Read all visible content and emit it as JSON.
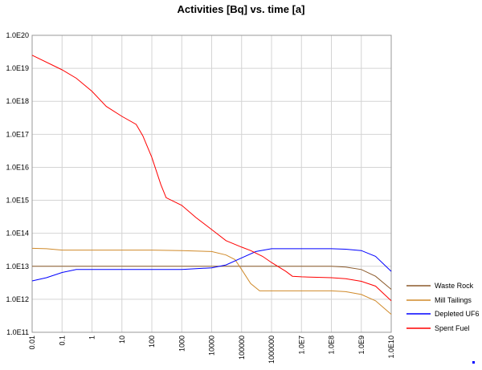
{
  "chart_data": {
    "type": "line",
    "title": "Activities [Bq] vs. time [a]",
    "xlabel": "",
    "ylabel": "",
    "x_scale": "log",
    "y_scale": "log",
    "xlim": [
      0.01,
      10000000000
    ],
    "ylim": [
      100000000000,
      100000000000000000000
    ],
    "grid": true,
    "legend_position": "right",
    "x_ticks": [
      {
        "value": 0.01,
        "label": "0.01"
      },
      {
        "value": 0.1,
        "label": "0.1"
      },
      {
        "value": 1,
        "label": "1"
      },
      {
        "value": 10,
        "label": "10"
      },
      {
        "value": 100,
        "label": "100"
      },
      {
        "value": 1000,
        "label": "1000"
      },
      {
        "value": 10000,
        "label": "10000"
      },
      {
        "value": 100000,
        "label": "100000"
      },
      {
        "value": 1000000,
        "label": "1000000"
      },
      {
        "value": 10000000,
        "label": "1.0E7"
      },
      {
        "value": 100000000,
        "label": "1.0E8"
      },
      {
        "value": 1000000000,
        "label": "1.0E9"
      },
      {
        "value": 10000000000,
        "label": "1.0E10"
      }
    ],
    "y_ticks": [
      {
        "value": 100000000000,
        "label": "1.0E11"
      },
      {
        "value": 1000000000000,
        "label": "1.0E12"
      },
      {
        "value": 10000000000000,
        "label": "1.0E13"
      },
      {
        "value": 100000000000000,
        "label": "1.0E14"
      },
      {
        "value": 1000000000000000,
        "label": "1.0E15"
      },
      {
        "value": 10000000000000000,
        "label": "1.0E16"
      },
      {
        "value": 100000000000000000,
        "label": "1.0E17"
      },
      {
        "value": 1000000000000000000,
        "label": "1.0E18"
      },
      {
        "value": 10000000000000000000,
        "label": "1.0E19"
      },
      {
        "value": 100000000000000000000,
        "label": "1.0E20"
      }
    ],
    "series": [
      {
        "name": "Waste Rock",
        "color": "#8b5a2b",
        "x": [
          0.01,
          0.1,
          1,
          10,
          100,
          1000,
          10000,
          100000,
          1000000,
          10000000,
          100000000,
          300000000,
          1000000000,
          3000000000,
          10000000000
        ],
        "y": [
          10000000000000,
          10000000000000,
          10000000000000,
          10000000000000,
          10000000000000,
          10000000000000,
          10000000000000,
          10000000000000,
          10000000000000,
          10000000000000,
          10000000000000,
          9500000000000,
          8000000000000,
          5000000000000,
          2000000000000
        ]
      },
      {
        "name": "Mill Tailings",
        "color": "#d08a2a",
        "x": [
          0.01,
          0.03,
          0.1,
          1,
          10,
          100,
          1000,
          10000,
          30000,
          60000,
          100000,
          200000,
          400000,
          1000000,
          10000000,
          100000000,
          300000000,
          1000000000,
          3000000000,
          10000000000
        ],
        "y": [
          35000000000000,
          34000000000000,
          31000000000000,
          31000000000000,
          31000000000000,
          31000000000000,
          30000000000000,
          28000000000000,
          22000000000000,
          16000000000000,
          8000000000000,
          3000000000000,
          1800000000000,
          1800000000000,
          1800000000000,
          1800000000000,
          1700000000000,
          1400000000000,
          900000000000,
          350000000000
        ]
      },
      {
        "name": "Depleted UF6",
        "color": "#0000ff",
        "x": [
          0.01,
          0.03,
          0.1,
          0.3,
          1,
          10,
          100,
          1000,
          10000,
          30000,
          100000,
          300000,
          1000000,
          10000000,
          100000000,
          300000000,
          1000000000,
          3000000000,
          10000000000
        ],
        "y": [
          3600000000000,
          4500000000000,
          6500000000000,
          8000000000000,
          8000000000000,
          8000000000000,
          8000000000000,
          8000000000000,
          9000000000000,
          11000000000000,
          18000000000000,
          28000000000000,
          34000000000000,
          34000000000000,
          34000000000000,
          33000000000000,
          30000000000000,
          20000000000000,
          7000000000000
        ]
      },
      {
        "name": "Spent Fuel",
        "color": "#ff0000",
        "x": [
          0.01,
          0.1,
          0.3,
          1,
          3,
          10,
          30,
          50,
          100,
          200,
          300,
          1000,
          3000,
          10000,
          30000,
          100000,
          200000,
          500000,
          1000000,
          3000000,
          5000000,
          10000000,
          100000000,
          300000000,
          1000000000,
          3000000000,
          10000000000
        ],
        "y": [
          25000000000000000000,
          9000000000000000000,
          5000000000000000000,
          2000000000000000000,
          700000000000000000,
          350000000000000000,
          200000000000000000,
          90000000000000000,
          20000000000000000,
          3000000000000000,
          1200000000000000,
          700000000000000,
          300000000000000,
          130000000000000,
          60000000000000,
          38000000000000,
          30000000000000,
          20000000000000,
          13000000000000,
          7000000000000,
          5000000000000,
          4800000000000,
          4500000000000,
          4200000000000,
          3500000000000,
          2500000000000,
          900000000000
        ]
      }
    ]
  }
}
